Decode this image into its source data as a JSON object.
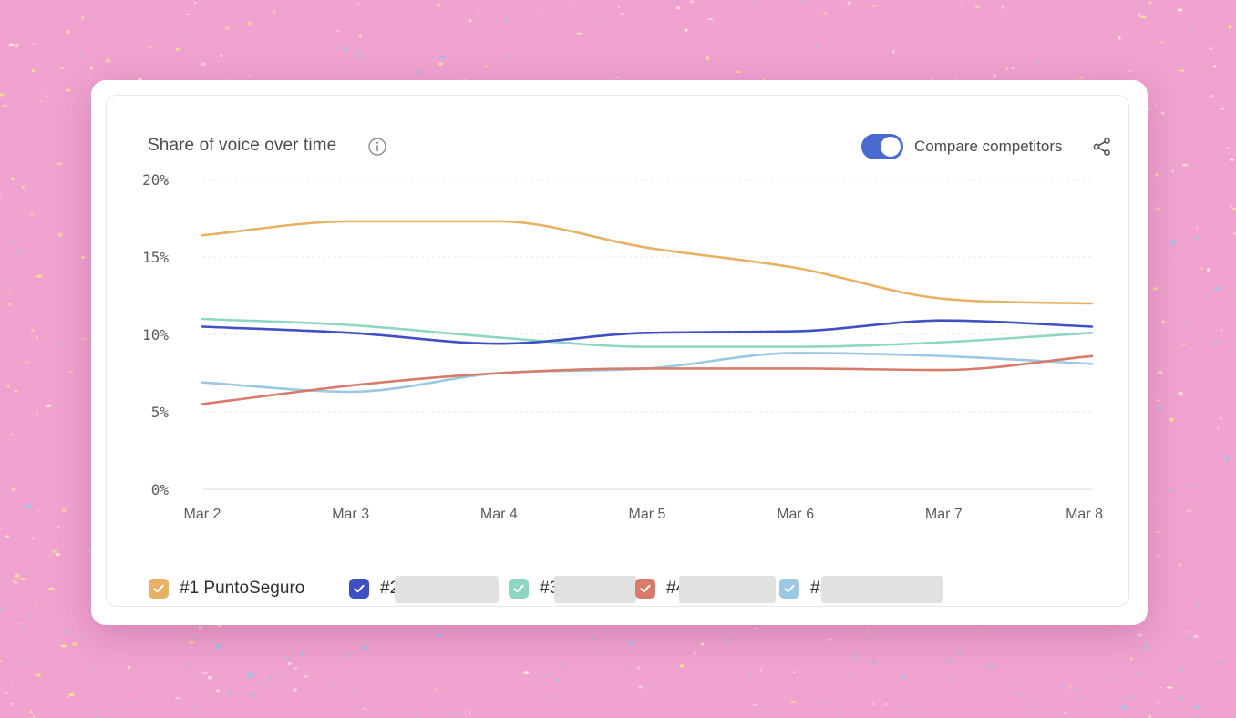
{
  "card": {
    "title": "Share of voice over time",
    "toggle_label": "Compare competitors",
    "toggle_on": true
  },
  "icons": {
    "info": "info-circle-icon",
    "share": "share-icon",
    "check": "check-icon"
  },
  "colors": {
    "background": "#f0a3cf",
    "toggle": "#4a6ad0",
    "series_1": "#e8b266",
    "series_2": "#3f51c2",
    "series_3": "#8fd5c4",
    "series_4": "#d97b6a",
    "series_5": "#9bc8e2"
  },
  "legend": [
    {
      "label": "#1 PuntoSeguro",
      "color": "#e8b266",
      "checked": true,
      "redacted": false
    },
    {
      "label": "#2",
      "color": "#3f51c2",
      "checked": true,
      "redacted": true
    },
    {
      "label": "#3",
      "color": "#8fd5c4",
      "checked": true,
      "redacted": true
    },
    {
      "label": "#4",
      "color": "#d97b6a",
      "checked": true,
      "redacted": true
    },
    {
      "label": "#5",
      "color": "#9bc8e2",
      "checked": true,
      "redacted": true
    }
  ],
  "chart_data": {
    "type": "line",
    "title": "Share of voice over time",
    "x": [
      "Mar 2",
      "Mar 3",
      "Mar 4",
      "Mar 5",
      "Mar 6",
      "Mar 7",
      "Mar 8"
    ],
    "yticks": [
      "0%",
      "5%",
      "10%",
      "15%",
      "20%"
    ],
    "ylim": [
      0,
      20
    ],
    "grid": true,
    "legend_position": "bottom",
    "series": [
      {
        "name": "#1 PuntoSeguro",
        "color": "#e8b266",
        "values": [
          16.4,
          17.3,
          17.3,
          15.6,
          14.3,
          12.3,
          12.0
        ]
      },
      {
        "name": "#2",
        "color": "#3f51c2",
        "values": [
          10.5,
          10.1,
          9.4,
          10.1,
          10.2,
          10.9,
          10.5
        ]
      },
      {
        "name": "#3",
        "color": "#8fd5c4",
        "values": [
          11.0,
          10.6,
          9.8,
          9.2,
          9.2,
          9.5,
          10.1
        ]
      },
      {
        "name": "#4",
        "color": "#d97b6a",
        "values": [
          5.5,
          6.7,
          7.5,
          7.8,
          7.8,
          7.7,
          8.6
        ]
      },
      {
        "name": "#5",
        "color": "#9bc8e2",
        "values": [
          6.9,
          6.3,
          7.5,
          7.8,
          8.8,
          8.6,
          8.1
        ]
      }
    ]
  }
}
